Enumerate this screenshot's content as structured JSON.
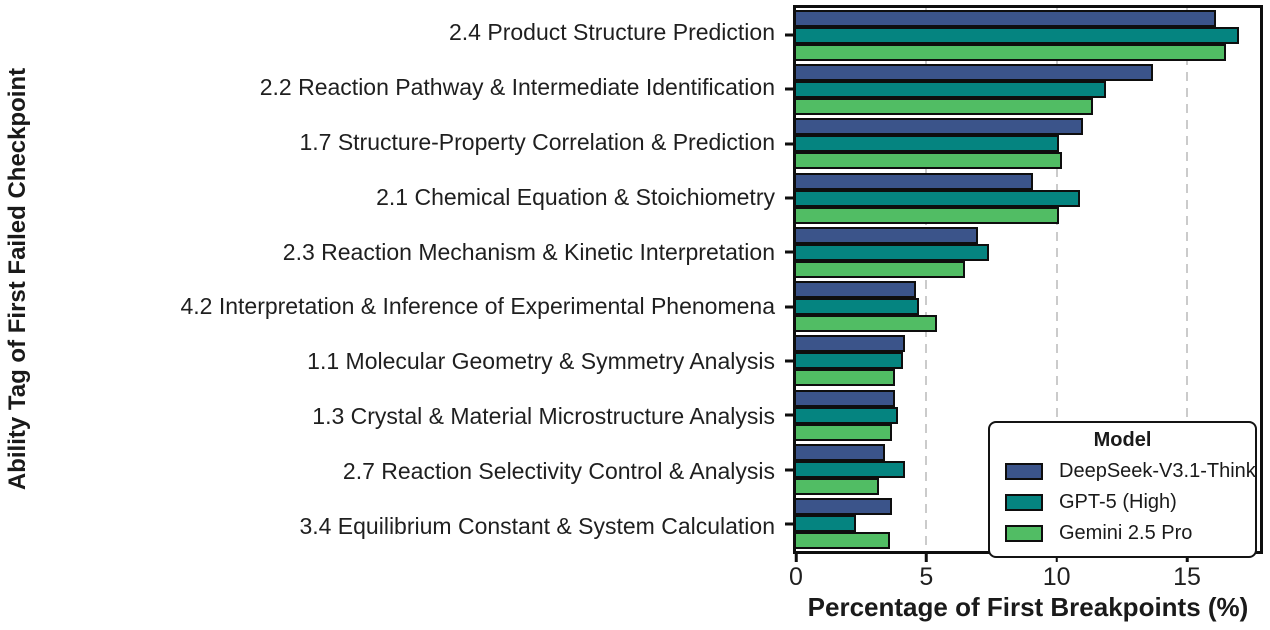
{
  "axes": {
    "y_title": "Ability Tag of First Failed Checkpoint",
    "x_title": "Percentage of First Breakpoints (%)"
  },
  "legend": {
    "title": "Model",
    "position": "lower right inside plot"
  },
  "style": {
    "text_color": "#1a1a1a",
    "axis_color": "#0e0e0e",
    "grid_color": "#cbcbcb",
    "background": "#ffffff"
  },
  "chart_data": {
    "type": "bar",
    "orientation": "horizontal",
    "title": "",
    "xlabel": "Percentage of First Breakpoints (%)",
    "ylabel": "Ability Tag of First Failed Checkpoint",
    "xlim": [
      0,
      17.8
    ],
    "x_ticks": [
      0,
      5,
      10,
      15
    ],
    "grid": "vertical dashed gridlines at x ticks",
    "legend_position": "lower right inside plot area",
    "categories": [
      "2.4 Product Structure Prediction",
      "2.2 Reaction Pathway & Intermediate Identification",
      "1.7 Structure-Property Correlation & Prediction",
      "2.1 Chemical Equation & Stoichiometry",
      "2.3 Reaction Mechanism & Kinetic Interpretation",
      "4.2 Interpretation & Inference of Experimental Phenomena",
      "1.1 Molecular Geometry & Symmetry Analysis",
      "1.3 Crystal & Material Microstructure Analysis",
      "2.7 Reaction Selectivity Control & Analysis",
      "3.4 Equilibrium Constant & System Calculation"
    ],
    "series": [
      {
        "name": "DeepSeek-V3.1-Think",
        "color": "#3b548a",
        "values": [
          16.1,
          13.7,
          11.0,
          9.1,
          7.0,
          4.6,
          4.2,
          3.8,
          3.4,
          3.7
        ]
      },
      {
        "name": "GPT-5 (High)",
        "color": "#058480",
        "values": [
          17.0,
          11.9,
          10.1,
          10.9,
          7.4,
          4.7,
          4.1,
          3.9,
          4.2,
          2.3
        ]
      },
      {
        "name": "Gemini 2.5 Pro",
        "color": "#51bd64",
        "values": [
          16.5,
          11.4,
          10.2,
          10.1,
          6.5,
          5.4,
          3.8,
          3.7,
          3.2,
          3.6
        ]
      }
    ]
  }
}
